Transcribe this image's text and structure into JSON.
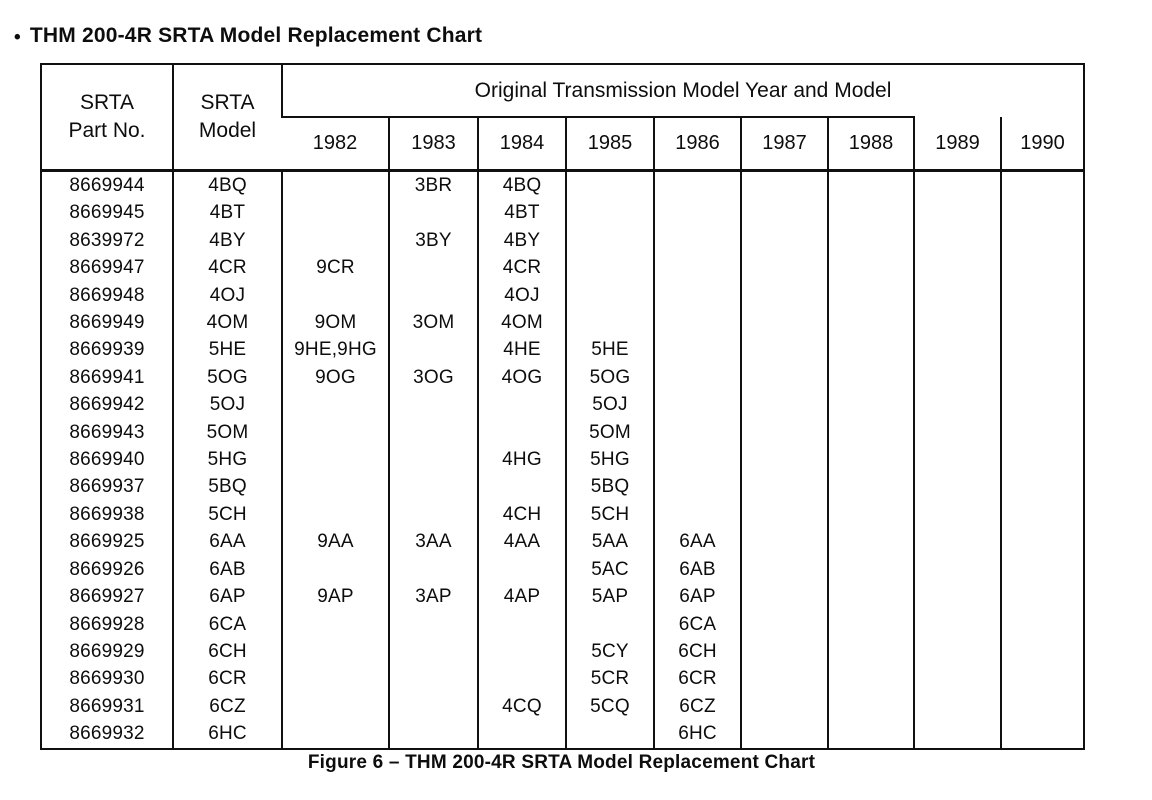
{
  "title": {
    "bullet": "•",
    "text": "THM 200-4R SRTA Model Replacement Chart"
  },
  "table": {
    "header": {
      "part_col": "SRTA\nPart No.",
      "model_col": "SRTA\nModel",
      "span_label": "Original Transmission Model Year and Model",
      "years": [
        "1982",
        "1983",
        "1984",
        "1985",
        "1986",
        "1987",
        "1988",
        "1989",
        "1990"
      ]
    },
    "rows": [
      {
        "part": "8669944",
        "model": "4BQ",
        "years": [
          "",
          "3BR",
          "4BQ",
          "",
          "",
          "",
          "",
          "",
          ""
        ]
      },
      {
        "part": "8669945",
        "model": "4BT",
        "years": [
          "",
          "",
          "4BT",
          "",
          "",
          "",
          "",
          "",
          ""
        ]
      },
      {
        "part": "8639972",
        "model": "4BY",
        "years": [
          "",
          "3BY",
          "4BY",
          "",
          "",
          "",
          "",
          "",
          ""
        ]
      },
      {
        "part": "8669947",
        "model": "4CR",
        "years": [
          "9CR",
          "",
          "4CR",
          "",
          "",
          "",
          "",
          "",
          ""
        ]
      },
      {
        "part": "8669948",
        "model": "4OJ",
        "years": [
          "",
          "",
          "4OJ",
          "",
          "",
          "",
          "",
          "",
          ""
        ]
      },
      {
        "part": "8669949",
        "model": "4OM",
        "years": [
          "9OM",
          "3OM",
          "4OM",
          "",
          "",
          "",
          "",
          "",
          ""
        ]
      },
      {
        "part": "8669939",
        "model": "5HE",
        "years": [
          "9HE,9HG",
          "",
          "4HE",
          "5HE",
          "",
          "",
          "",
          "",
          ""
        ]
      },
      {
        "part": "8669941",
        "model": "5OG",
        "years": [
          "9OG",
          "3OG",
          "4OG",
          "5OG",
          "",
          "",
          "",
          "",
          ""
        ]
      },
      {
        "part": "8669942",
        "model": "5OJ",
        "years": [
          "",
          "",
          "",
          "5OJ",
          "",
          "",
          "",
          "",
          ""
        ]
      },
      {
        "part": "8669943",
        "model": "5OM",
        "years": [
          "",
          "",
          "",
          "5OM",
          "",
          "",
          "",
          "",
          ""
        ]
      },
      {
        "part": "8669940",
        "model": "5HG",
        "years": [
          "",
          "",
          "4HG",
          "5HG",
          "",
          "",
          "",
          "",
          ""
        ]
      },
      {
        "part": "8669937",
        "model": "5BQ",
        "years": [
          "",
          "",
          "",
          "5BQ",
          "",
          "",
          "",
          "",
          ""
        ]
      },
      {
        "part": "8669938",
        "model": "5CH",
        "years": [
          "",
          "",
          "4CH",
          "5CH",
          "",
          "",
          "",
          "",
          ""
        ]
      },
      {
        "part": "8669925",
        "model": "6AA",
        "years": [
          "9AA",
          "3AA",
          "4AA",
          "5AA",
          "6AA",
          "",
          "",
          "",
          ""
        ]
      },
      {
        "part": "8669926",
        "model": "6AB",
        "years": [
          "",
          "",
          "",
          "5AC",
          "6AB",
          "",
          "",
          "",
          ""
        ]
      },
      {
        "part": "8669927",
        "model": "6AP",
        "years": [
          "9AP",
          "3AP",
          "4AP",
          "5AP",
          "6AP",
          "",
          "",
          "",
          ""
        ]
      },
      {
        "part": "8669928",
        "model": "6CA",
        "years": [
          "",
          "",
          "",
          "",
          "6CA",
          "",
          "",
          "",
          ""
        ]
      },
      {
        "part": "8669929",
        "model": "6CH",
        "years": [
          "",
          "",
          "",
          "5CY",
          "6CH",
          "",
          "",
          "",
          ""
        ]
      },
      {
        "part": "8669930",
        "model": "6CR",
        "years": [
          "",
          "",
          "",
          "5CR",
          "6CR",
          "",
          "",
          "",
          ""
        ]
      },
      {
        "part": "8669931",
        "model": "6CZ",
        "years": [
          "",
          "",
          "4CQ",
          "5CQ",
          "6CZ",
          "",
          "",
          "",
          ""
        ]
      },
      {
        "part": "8669932",
        "model": "6HC",
        "years": [
          "",
          "",
          "",
          "",
          "6HC",
          "",
          "",
          "",
          ""
        ]
      }
    ]
  },
  "caption": "Figure 6 – THM 200-4R SRTA Model Replacement Chart"
}
